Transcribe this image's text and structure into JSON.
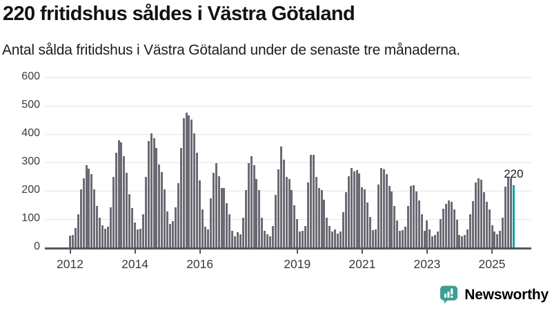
{
  "header": {
    "title": "220 fritidshus såldes i Västra Götaland",
    "subtitle": "Antal sålda fritidshus i Västra Götaland under de senaste tre månaderna."
  },
  "chart_data": {
    "type": "bar",
    "title": "220 fritidshus såldes i Västra Götaland",
    "xlabel": "",
    "ylabel": "Antal sålda fritidshus",
    "start_year": 2012,
    "start_month": 1,
    "frequency": "monthly",
    "values": [
      42,
      45,
      68,
      118,
      205,
      245,
      290,
      278,
      258,
      205,
      146,
      106,
      77,
      67,
      73,
      142,
      248,
      333,
      378,
      370,
      321,
      264,
      187,
      138,
      89,
      63,
      67,
      116,
      250,
      376,
      403,
      385,
      352,
      293,
      267,
      206,
      128,
      84,
      92,
      142,
      228,
      352,
      455,
      475,
      466,
      451,
      403,
      333,
      236,
      133,
      72,
      63,
      172,
      263,
      297,
      252,
      210,
      210,
      157,
      116,
      58,
      39,
      53,
      47,
      104,
      203,
      297,
      321,
      291,
      242,
      203,
      104,
      58,
      47,
      39,
      76,
      185,
      276,
      356,
      309,
      248,
      242,
      202,
      149,
      100,
      55,
      59,
      76,
      230,
      328,
      328,
      250,
      210,
      202,
      169,
      104,
      76,
      55,
      63,
      48,
      56,
      124,
      196,
      252,
      280,
      268,
      274,
      260,
      212,
      204,
      158,
      108,
      60,
      64,
      222,
      281,
      276,
      259,
      216,
      198,
      146,
      96,
      58,
      61,
      73,
      146,
      218,
      220,
      198,
      167,
      116,
      59,
      94,
      63,
      39,
      45,
      55,
      100,
      137,
      153,
      165,
      161,
      133,
      98,
      43,
      39,
      45,
      63,
      116,
      163,
      230,
      245,
      238,
      195,
      160,
      134,
      79,
      57,
      46,
      59,
      106,
      215,
      250,
      246,
      220
    ],
    "highlight_last": true,
    "highlight_label": "220",
    "bar_color": "#6b6a73",
    "highlight_color": "#0ba6a0",
    "ylim": [
      0,
      600
    ],
    "yticks": [
      0,
      100,
      200,
      300,
      400,
      500,
      600
    ],
    "xticks": [
      2012,
      2014,
      2016,
      2019,
      2021,
      2023,
      2025
    ],
    "grid": true,
    "legend": "none"
  },
  "footer": {
    "brand": "Newsworthy",
    "brand_color": "#3c9e94"
  }
}
